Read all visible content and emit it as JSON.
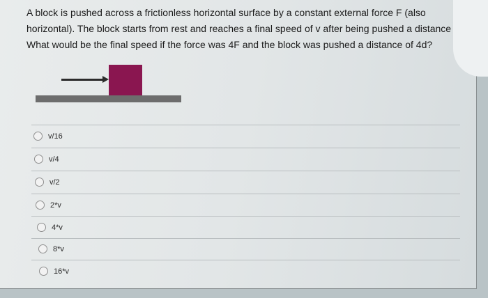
{
  "question": {
    "lines": [
      "A block is pushed across a frictionless horizontal surface by a constant external force F (also",
      "horizontal).  The block starts from rest and reaches a final speed of v after being pushed a distance d.",
      "What would be the final speed if the force was 4F and the block was pushed a distance of 4d?"
    ]
  },
  "figure": {
    "block_color": "#8a1650",
    "ground_color": "#6d6d6d",
    "arrow_color": "#2b2b2b"
  },
  "options": [
    "v/16",
    "v/4",
    "v/2",
    "2*v",
    "4*v",
    "8*v",
    "16*v"
  ]
}
